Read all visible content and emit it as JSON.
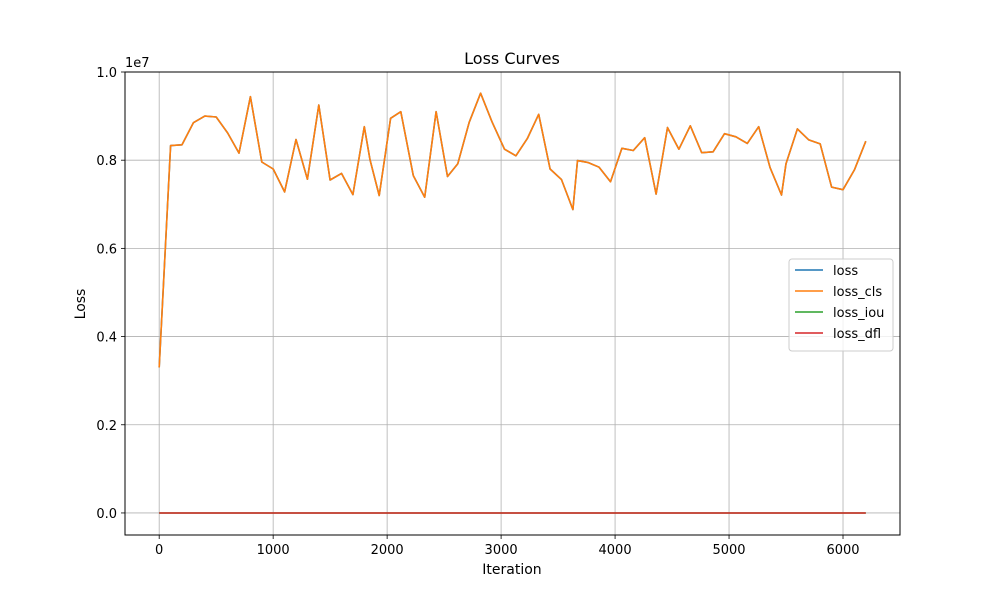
{
  "chart_data": {
    "type": "line",
    "title": "Loss Curves",
    "xlabel": "Iteration",
    "ylabel": "Loss",
    "y_scale_offset": "1e7",
    "xlim": [
      -300,
      6500
    ],
    "ylim": [
      -500000,
      10000000
    ],
    "xticks": [
      0,
      1000,
      2000,
      3000,
      4000,
      5000,
      6000
    ],
    "xtick_labels": [
      "0",
      "1000",
      "2000",
      "3000",
      "4000",
      "5000",
      "6000"
    ],
    "yticks": [
      0,
      2000000,
      4000000,
      6000000,
      8000000,
      10000000
    ],
    "ytick_labels": [
      "0.0",
      "0.2",
      "0.4",
      "0.6",
      "0.8",
      "1.0"
    ],
    "grid": true,
    "legend_position": "center-right",
    "x": [
      0,
      100,
      200,
      300,
      400,
      500,
      600,
      700,
      800,
      900,
      1000,
      1100,
      1200,
      1300,
      1400,
      1500,
      1600,
      1700,
      1800,
      1850,
      1930,
      2030,
      2120,
      2230,
      2330,
      2430,
      2530,
      2620,
      2720,
      2820,
      2920,
      3030,
      3130,
      3230,
      3330,
      3430,
      3530,
      3630,
      3670,
      3760,
      3860,
      3960,
      4060,
      4160,
      4260,
      4360,
      4460,
      4560,
      4660,
      4760,
      4860,
      4960,
      5060,
      5160,
      5260,
      5360,
      5460,
      5500,
      5600,
      5700,
      5800,
      5900,
      6000,
      6100,
      6200
    ],
    "series": [
      {
        "name": "loss",
        "color": "#1f77b4",
        "values": [
          3300000,
          8330000,
          8350000,
          8850000,
          9000000,
          8980000,
          8620000,
          8160000,
          9440000,
          7960000,
          7800000,
          7280000,
          8470000,
          7570000,
          9250000,
          7550000,
          7700000,
          7220000,
          8760000,
          8010000,
          7200000,
          8950000,
          9100000,
          7650000,
          7160000,
          9100000,
          7630000,
          7920000,
          8860000,
          9520000,
          8870000,
          8250000,
          8100000,
          8490000,
          9040000,
          7800000,
          7560000,
          6880000,
          7990000,
          7950000,
          7840000,
          7510000,
          8270000,
          8220000,
          8510000,
          7230000,
          8740000,
          8250000,
          8780000,
          8170000,
          8190000,
          8600000,
          8530000,
          8380000,
          8760000,
          7830000,
          7210000,
          7920000,
          8710000,
          8460000,
          8370000,
          7390000,
          7330000,
          7780000,
          8430000
        ]
      },
      {
        "name": "loss_cls",
        "color": "#ff7f0e",
        "values": [
          3300000,
          8330000,
          8350000,
          8850000,
          9000000,
          8980000,
          8620000,
          8160000,
          9440000,
          7960000,
          7800000,
          7280000,
          8470000,
          7570000,
          9250000,
          7550000,
          7700000,
          7220000,
          8760000,
          8010000,
          7200000,
          8950000,
          9100000,
          7650000,
          7160000,
          9100000,
          7630000,
          7920000,
          8860000,
          9520000,
          8870000,
          8250000,
          8100000,
          8490000,
          9040000,
          7800000,
          7560000,
          6880000,
          7990000,
          7950000,
          7840000,
          7510000,
          8270000,
          8220000,
          8510000,
          7230000,
          8740000,
          8250000,
          8780000,
          8170000,
          8190000,
          8600000,
          8530000,
          8380000,
          8760000,
          7830000,
          7210000,
          7920000,
          8710000,
          8460000,
          8370000,
          7390000,
          7330000,
          7780000,
          8430000
        ]
      },
      {
        "name": "loss_iou",
        "color": "#2ca02c",
        "values": [
          0,
          0,
          0,
          0,
          0,
          0,
          0,
          0,
          0,
          0,
          0,
          0,
          0,
          0,
          0,
          0,
          0,
          0,
          0,
          0,
          0,
          0,
          0,
          0,
          0,
          0,
          0,
          0,
          0,
          0,
          0,
          0,
          0,
          0,
          0,
          0,
          0,
          0,
          0,
          0,
          0,
          0,
          0,
          0,
          0,
          0,
          0,
          0,
          0,
          0,
          0,
          0,
          0,
          0,
          0,
          0,
          0,
          0,
          0,
          0,
          0,
          0,
          0,
          0,
          0
        ]
      },
      {
        "name": "loss_dfl",
        "color": "#d62728",
        "values": [
          0,
          0,
          0,
          0,
          0,
          0,
          0,
          0,
          0,
          0,
          0,
          0,
          0,
          0,
          0,
          0,
          0,
          0,
          0,
          0,
          0,
          0,
          0,
          0,
          0,
          0,
          0,
          0,
          0,
          0,
          0,
          0,
          0,
          0,
          0,
          0,
          0,
          0,
          0,
          0,
          0,
          0,
          0,
          0,
          0,
          0,
          0,
          0,
          0,
          0,
          0,
          0,
          0,
          0,
          0,
          0,
          0,
          0,
          0,
          0,
          0,
          0,
          0,
          0,
          0
        ]
      }
    ]
  }
}
